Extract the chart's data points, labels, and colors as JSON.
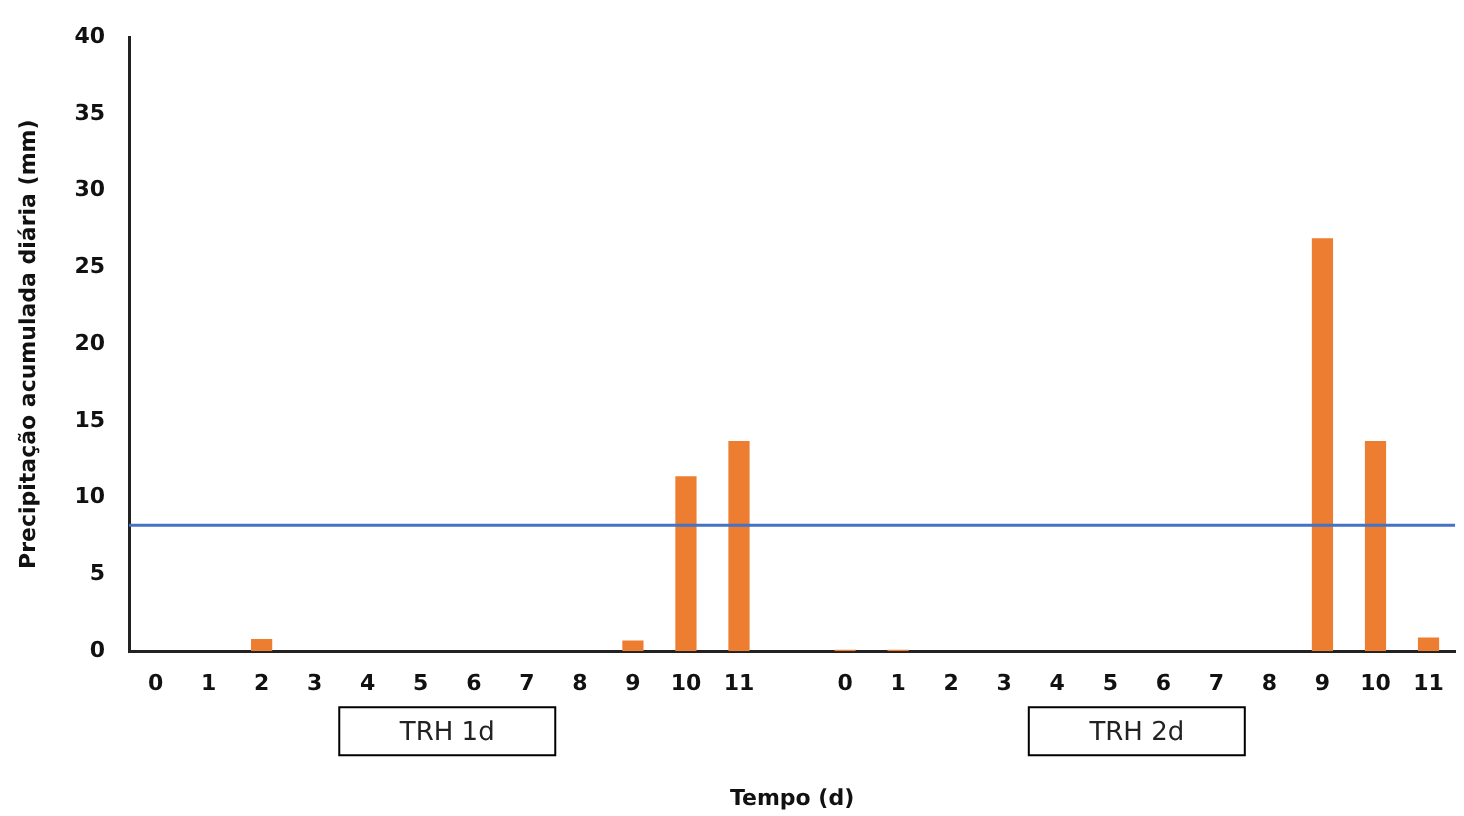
{
  "chart_data": {
    "type": "bar",
    "xlabel": "Tempo (d)",
    "ylabel": "Precipitação acumulada diária (mm)",
    "categories": [
      "0",
      "1",
      "2",
      "3",
      "4",
      "5",
      "6",
      "7",
      "8",
      "9",
      "10",
      "11",
      null,
      "0",
      "1",
      "2",
      "3",
      "4",
      "5",
      "6",
      "7",
      "8",
      "9",
      "10",
      "11"
    ],
    "values": [
      0,
      0,
      0.8,
      0,
      0,
      0,
      0,
      0,
      0,
      0.7,
      11.4,
      13.7,
      null,
      0.1,
      0.1,
      0,
      0,
      0,
      0,
      0,
      0,
      0,
      26.9,
      13.7,
      0.9
    ],
    "color": "#ed7d31",
    "ylim": [
      0,
      40
    ],
    "yticks": [
      0,
      5,
      10,
      15,
      20,
      25,
      30,
      35,
      40
    ],
    "ref_lines": [
      {
        "axis": "y",
        "value": 8.2,
        "color": "#4472c4"
      }
    ],
    "annotations": [
      "TRH 1d",
      "TRH 2d"
    ],
    "grid": false,
    "legend": false
  }
}
